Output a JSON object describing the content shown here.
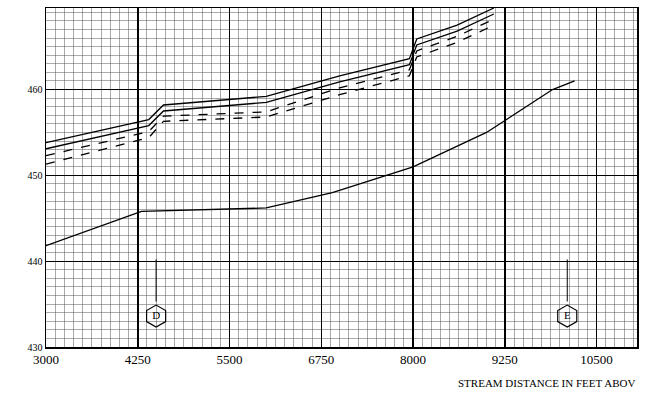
{
  "chart_data": {
    "type": "line",
    "xlabel": "STREAM DISTANCE IN FEET ABOV",
    "xlim": [
      3000,
      11050
    ],
    "ylim": [
      430,
      469.5
    ],
    "xticks": [
      3000,
      4250,
      5500,
      6750,
      8000,
      9250,
      10500
    ],
    "yticks": [
      430,
      440,
      450,
      460
    ],
    "grid": true,
    "color": "#000000",
    "series": [
      {
        "x": [
          3000,
          4400,
          4600,
          6000,
          7000,
          7950,
          8050,
          8600,
          9100
        ],
        "values": [
          453.8,
          456.5,
          458.2,
          459.2,
          461.6,
          463.6,
          465.9,
          467.5,
          469.5
        ],
        "line_style": "solid"
      },
      {
        "x": [
          3000,
          4400,
          4600,
          6000,
          7000,
          7950,
          8050,
          8600,
          9100
        ],
        "values": [
          453.1,
          455.8,
          457.5,
          458.5,
          460.9,
          462.9,
          465.2,
          466.8,
          468.8
        ],
        "line_style": "solid"
      },
      {
        "x": [
          3000,
          4400,
          4600,
          6000,
          7000,
          7950,
          8050,
          8600,
          9100
        ],
        "values": [
          452.3,
          455.1,
          456.9,
          457.4,
          460.2,
          462.3,
          464.5,
          466.2,
          468.2
        ],
        "line_style": "dash"
      },
      {
        "x": [
          3000,
          4400,
          4600,
          6000,
          7000,
          7950,
          8050,
          8600,
          9100
        ],
        "values": [
          451.3,
          454.4,
          456.3,
          456.8,
          459.4,
          461.6,
          463.8,
          465.5,
          467.5
        ],
        "line_style": "dash"
      },
      {
        "x": [
          3000,
          4300,
          6000,
          6900,
          8000,
          9000,
          9900,
          10200
        ],
        "values": [
          441.8,
          445.8,
          446.2,
          448.0,
          451.0,
          455.0,
          460.0,
          461.0
        ],
        "line_style": "solid"
      }
    ],
    "annotations": [
      {
        "text": "D",
        "x": 4500,
        "y": 433.6,
        "stem": [
          435.3,
          440.2
        ]
      },
      {
        "text": "E",
        "x": 10100,
        "y": 433.6,
        "stem": [
          435.3,
          440.2
        ]
      }
    ]
  }
}
